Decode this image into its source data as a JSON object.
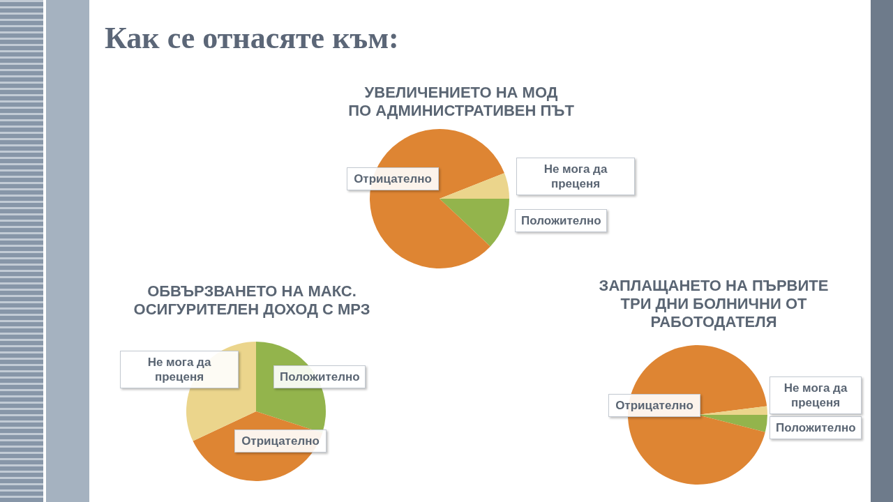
{
  "chart_data": [
    {
      "type": "other",
      "title": "Как се отнасяте към:"
    },
    {
      "type": "pie",
      "title": "УВЕЛИЧЕНИЕТО НА МОД ПО АДМИНИСТРАТИВЕН ПЪТ",
      "categories": [
        "Положително",
        "Отрицателно",
        "Не мога да преценя"
      ],
      "values": [
        12,
        82,
        6
      ],
      "colors": [
        "#93b44c",
        "#de8533",
        "#ebd58c"
      ]
    },
    {
      "type": "pie",
      "title": "ОБВЪРЗВАНЕТО НА МАКС. ОСИГУРИТЕЛЕН ДОХОД С МРЗ",
      "categories": [
        "Положително",
        "Отрицателно",
        "Не мога да преценя"
      ],
      "values": [
        30,
        38,
        32
      ],
      "colors": [
        "#93b44c",
        "#de8533",
        "#ebd58c"
      ]
    },
    {
      "type": "pie",
      "title": "ЗАПЛАЩАНЕТО НА ПЪРВИТЕ ТРИ ДНИ БОЛНИЧНИ ОТ РАБОТОДАТЕЛЯ",
      "categories": [
        "Положително",
        "Отрицателно",
        "Не мога да преценя"
      ],
      "values": [
        4,
        94,
        2
      ],
      "colors": [
        "#93b44c",
        "#de8533",
        "#ebd58c"
      ]
    }
  ]
}
